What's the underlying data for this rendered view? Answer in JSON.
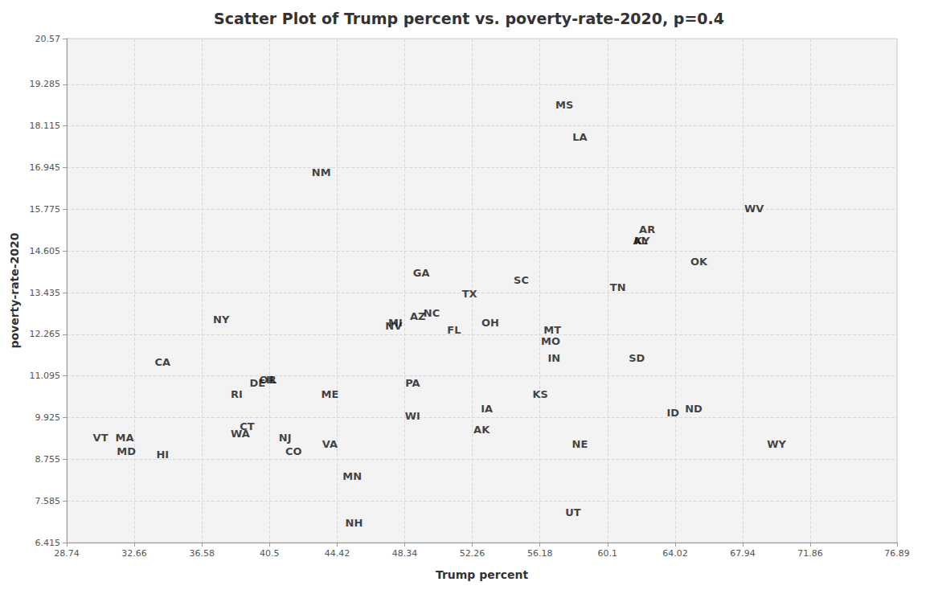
{
  "chart_data": {
    "type": "scatter",
    "title": "Scatter Plot of Trump percent vs. poverty-rate-2020, p=0.4",
    "x_label": "Trump percent",
    "y_label": "poverty-rate-2020",
    "labels": [
      "MS",
      "LA",
      "NM",
      "WV",
      "AR",
      "AL",
      "KY",
      "OK",
      "GA",
      "SC",
      "TX",
      "TN",
      "NY",
      "AZ",
      "NC",
      "MI",
      "NV",
      "FL",
      "OH",
      "MT",
      "MO",
      "IN",
      "SD",
      "CA",
      "OR",
      "DE",
      "IL",
      "PA",
      "RI",
      "ME",
      "KS",
      "IA",
      "ID",
      "ND",
      "WI",
      "CT",
      "AK",
      "WA",
      "VT",
      "MA",
      "NJ",
      "VA",
      "NE",
      "WY",
      "MD",
      "HI",
      "CO",
      "MN",
      "UT",
      "NH"
    ],
    "x": [
      57.6,
      58.5,
      43.5,
      68.6,
      62.4,
      62.0,
      62.1,
      65.4,
      49.3,
      55.1,
      52.1,
      60.7,
      37.7,
      49.1,
      49.9,
      47.8,
      47.7,
      51.2,
      53.3,
      56.9,
      56.8,
      57.0,
      61.8,
      34.3,
      40.4,
      39.8,
      40.6,
      48.8,
      38.6,
      44.0,
      56.2,
      53.1,
      63.9,
      65.1,
      48.8,
      39.2,
      52.8,
      38.8,
      30.7,
      32.1,
      41.4,
      44.0,
      58.5,
      69.9,
      32.2,
      34.3,
      41.9,
      45.3,
      58.1,
      45.4
    ],
    "values": [
      18.7,
      17.8,
      16.81,
      15.79,
      15.2,
      14.9,
      14.9,
      14.3,
      13.98,
      13.78,
      13.4,
      13.58,
      12.67,
      12.78,
      12.87,
      12.58,
      12.49,
      12.38,
      12.58,
      12.38,
      12.08,
      11.59,
      11.59,
      11.48,
      10.98,
      10.89,
      10.98,
      10.89,
      10.57,
      10.57,
      10.57,
      10.17,
      10.07,
      10.17,
      9.98,
      9.67,
      9.58,
      9.47,
      9.37,
      9.37,
      9.37,
      9.17,
      9.17,
      9.17,
      8.97,
      8.88,
      8.97,
      8.27,
      7.27,
      6.96
    ],
    "xlim": [
      28.74,
      76.89
    ],
    "xticks": [
      28.74,
      32.66,
      36.58,
      40.5,
      44.42,
      48.34,
      52.26,
      56.18,
      60.1,
      64.02,
      67.94,
      71.86,
      76.89
    ],
    "ylim": [
      6.415,
      20.57
    ],
    "yticks": [
      6.415,
      7.585,
      8.755,
      9.925,
      11.095,
      12.265,
      13.435,
      14.605,
      15.775,
      16.945,
      18.115,
      19.285,
      20.57
    ],
    "grid": true,
    "marker": "none",
    "color": "#111111"
  }
}
